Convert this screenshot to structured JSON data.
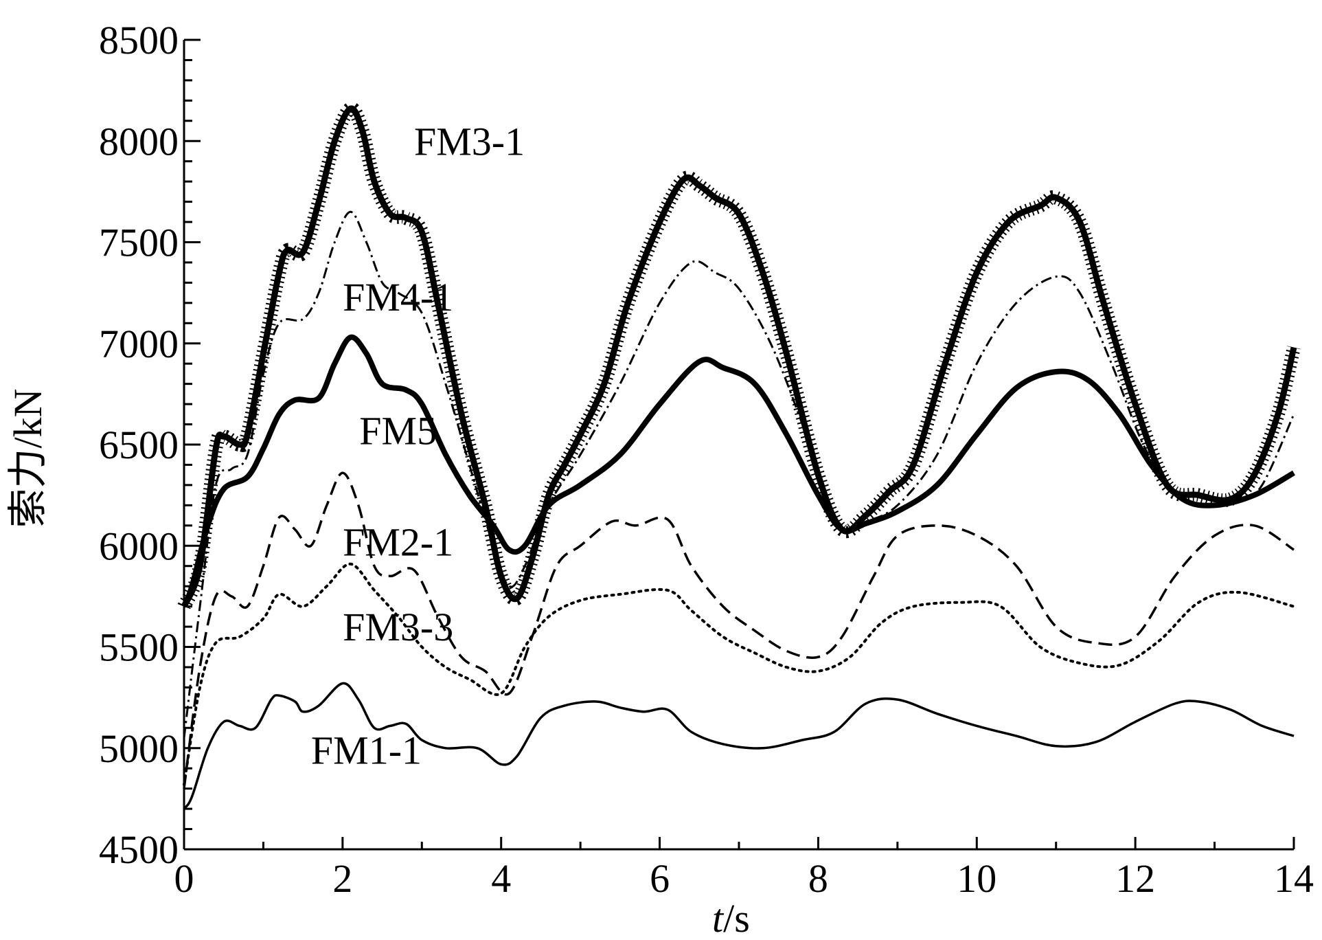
{
  "chart_data": {
    "type": "line",
    "title": "",
    "xlabel_var": "t",
    "xlabel_unit": "/s",
    "ylabel": "索力/kN",
    "xlim": [
      0,
      14
    ],
    "ylim": [
      4500,
      8500
    ],
    "x_ticks": [
      0,
      2,
      4,
      6,
      8,
      10,
      12,
      14
    ],
    "x_tick_labels": [
      "0",
      "2",
      "4",
      "6",
      "8",
      "10",
      "12",
      "14"
    ],
    "y_ticks": [
      4500,
      5000,
      5500,
      6000,
      6500,
      7000,
      7500,
      8000,
      8500
    ],
    "y_tick_labels": [
      "4500",
      "5000",
      "5500",
      "6000",
      "6500",
      "7000",
      "7500",
      "8000",
      "8500"
    ],
    "grid": false,
    "legend": "none",
    "series": [
      {
        "name": "FM3-1",
        "style": "thick-crossed",
        "points": [
          [
            0,
            5700
          ],
          [
            0.2,
            5900
          ],
          [
            0.4,
            6480
          ],
          [
            0.5,
            6540
          ],
          [
            0.7,
            6500
          ],
          [
            0.8,
            6550
          ],
          [
            1.0,
            6950
          ],
          [
            1.2,
            7350
          ],
          [
            1.3,
            7460
          ],
          [
            1.5,
            7450
          ],
          [
            1.7,
            7700
          ],
          [
            1.9,
            8000
          ],
          [
            2.1,
            8160
          ],
          [
            2.25,
            8050
          ],
          [
            2.4,
            7800
          ],
          [
            2.6,
            7640
          ],
          [
            2.8,
            7620
          ],
          [
            3.0,
            7550
          ],
          [
            3.2,
            7200
          ],
          [
            3.5,
            6650
          ],
          [
            3.8,
            6200
          ],
          [
            4.0,
            5850
          ],
          [
            4.2,
            5740
          ],
          [
            4.4,
            5950
          ],
          [
            4.6,
            6250
          ],
          [
            4.8,
            6400
          ],
          [
            5.0,
            6550
          ],
          [
            5.3,
            6800
          ],
          [
            5.6,
            7200
          ],
          [
            6.0,
            7600
          ],
          [
            6.3,
            7810
          ],
          [
            6.5,
            7780
          ],
          [
            6.7,
            7720
          ],
          [
            7.0,
            7640
          ],
          [
            7.3,
            7350
          ],
          [
            7.6,
            6950
          ],
          [
            8.0,
            6350
          ],
          [
            8.3,
            6080
          ],
          [
            8.6,
            6150
          ],
          [
            8.9,
            6270
          ],
          [
            9.2,
            6400
          ],
          [
            9.6,
            6900
          ],
          [
            10.0,
            7350
          ],
          [
            10.4,
            7600
          ],
          [
            10.8,
            7680
          ],
          [
            11.0,
            7720
          ],
          [
            11.3,
            7600
          ],
          [
            11.6,
            7200
          ],
          [
            12.0,
            6700
          ],
          [
            12.4,
            6300
          ],
          [
            12.8,
            6250
          ],
          [
            13.2,
            6230
          ],
          [
            13.5,
            6350
          ],
          [
            13.8,
            6650
          ],
          [
            14.0,
            6980
          ]
        ]
      },
      {
        "name": "FM4-1",
        "style": "dash-dot",
        "points": [
          [
            0,
            5050
          ],
          [
            0.2,
            5700
          ],
          [
            0.4,
            6300
          ],
          [
            0.6,
            6380
          ],
          [
            0.8,
            6450
          ],
          [
            1.0,
            6850
          ],
          [
            1.2,
            7100
          ],
          [
            1.5,
            7120
          ],
          [
            1.7,
            7250
          ],
          [
            1.9,
            7500
          ],
          [
            2.1,
            7650
          ],
          [
            2.3,
            7500
          ],
          [
            2.5,
            7300
          ],
          [
            2.7,
            7250
          ],
          [
            3.0,
            7150
          ],
          [
            3.3,
            6800
          ],
          [
            3.6,
            6400
          ],
          [
            3.9,
            6000
          ],
          [
            4.1,
            5800
          ],
          [
            4.3,
            5900
          ],
          [
            4.6,
            6200
          ],
          [
            5.0,
            6450
          ],
          [
            5.5,
            6800
          ],
          [
            6.0,
            7200
          ],
          [
            6.4,
            7400
          ],
          [
            6.7,
            7350
          ],
          [
            7.0,
            7270
          ],
          [
            7.4,
            7000
          ],
          [
            7.8,
            6600
          ],
          [
            8.1,
            6250
          ],
          [
            8.3,
            6100
          ],
          [
            8.6,
            6120
          ],
          [
            9.0,
            6200
          ],
          [
            9.5,
            6450
          ],
          [
            10.0,
            6900
          ],
          [
            10.5,
            7200
          ],
          [
            11.0,
            7330
          ],
          [
            11.3,
            7250
          ],
          [
            11.7,
            6900
          ],
          [
            12.1,
            6500
          ],
          [
            12.5,
            6250
          ],
          [
            12.9,
            6200
          ],
          [
            13.3,
            6220
          ],
          [
            13.6,
            6300
          ],
          [
            14.0,
            6650
          ]
        ]
      },
      {
        "name": "FM5",
        "style": "thick-solid",
        "points": [
          [
            0,
            5700
          ],
          [
            0.1,
            5800
          ],
          [
            0.3,
            6100
          ],
          [
            0.5,
            6280
          ],
          [
            0.8,
            6340
          ],
          [
            1.0,
            6480
          ],
          [
            1.2,
            6650
          ],
          [
            1.4,
            6720
          ],
          [
            1.7,
            6730
          ],
          [
            1.9,
            6900
          ],
          [
            2.1,
            7030
          ],
          [
            2.3,
            6950
          ],
          [
            2.5,
            6800
          ],
          [
            2.8,
            6770
          ],
          [
            3.0,
            6700
          ],
          [
            3.3,
            6450
          ],
          [
            3.6,
            6250
          ],
          [
            3.9,
            6100
          ],
          [
            4.1,
            5980
          ],
          [
            4.3,
            6000
          ],
          [
            4.6,
            6200
          ],
          [
            5.0,
            6300
          ],
          [
            5.5,
            6450
          ],
          [
            6.0,
            6700
          ],
          [
            6.5,
            6910
          ],
          [
            6.8,
            6880
          ],
          [
            7.2,
            6800
          ],
          [
            7.6,
            6550
          ],
          [
            8.0,
            6250
          ],
          [
            8.3,
            6080
          ],
          [
            8.6,
            6110
          ],
          [
            9.0,
            6170
          ],
          [
            9.5,
            6300
          ],
          [
            10.0,
            6550
          ],
          [
            10.5,
            6780
          ],
          [
            11.0,
            6860
          ],
          [
            11.4,
            6820
          ],
          [
            11.8,
            6650
          ],
          [
            12.2,
            6400
          ],
          [
            12.6,
            6230
          ],
          [
            13.0,
            6200
          ],
          [
            13.5,
            6250
          ],
          [
            14.0,
            6360
          ]
        ]
      },
      {
        "name": "FM2-1",
        "style": "dashed",
        "points": [
          [
            0,
            4800
          ],
          [
            0.2,
            5400
          ],
          [
            0.4,
            5750
          ],
          [
            0.6,
            5750
          ],
          [
            0.8,
            5700
          ],
          [
            1.0,
            5900
          ],
          [
            1.2,
            6140
          ],
          [
            1.4,
            6080
          ],
          [
            1.6,
            6000
          ],
          [
            1.8,
            6200
          ],
          [
            2.0,
            6360
          ],
          [
            2.2,
            6200
          ],
          [
            2.4,
            5900
          ],
          [
            2.6,
            5850
          ],
          [
            2.9,
            5880
          ],
          [
            3.2,
            5650
          ],
          [
            3.5,
            5450
          ],
          [
            3.8,
            5380
          ],
          [
            4.1,
            5270
          ],
          [
            4.4,
            5560
          ],
          [
            4.7,
            5900
          ],
          [
            5.0,
            6000
          ],
          [
            5.4,
            6120
          ],
          [
            5.7,
            6100
          ],
          [
            6.1,
            6130
          ],
          [
            6.4,
            5900
          ],
          [
            6.8,
            5700
          ],
          [
            7.2,
            5580
          ],
          [
            7.6,
            5480
          ],
          [
            8.0,
            5450
          ],
          [
            8.3,
            5550
          ],
          [
            8.7,
            5850
          ],
          [
            9.0,
            6050
          ],
          [
            9.5,
            6100
          ],
          [
            10.0,
            6050
          ],
          [
            10.5,
            5900
          ],
          [
            11.0,
            5600
          ],
          [
            11.5,
            5520
          ],
          [
            12.0,
            5550
          ],
          [
            12.5,
            5850
          ],
          [
            13.0,
            6050
          ],
          [
            13.5,
            6100
          ],
          [
            14.0,
            5980
          ]
        ]
      },
      {
        "name": "FM3-3",
        "style": "dotted",
        "points": [
          [
            0,
            4820
          ],
          [
            0.2,
            5300
          ],
          [
            0.4,
            5520
          ],
          [
            0.7,
            5550
          ],
          [
            1.0,
            5640
          ],
          [
            1.2,
            5760
          ],
          [
            1.5,
            5700
          ],
          [
            1.8,
            5800
          ],
          [
            2.1,
            5910
          ],
          [
            2.4,
            5780
          ],
          [
            2.7,
            5650
          ],
          [
            3.0,
            5500
          ],
          [
            3.3,
            5400
          ],
          [
            3.6,
            5340
          ],
          [
            4.0,
            5270
          ],
          [
            4.3,
            5500
          ],
          [
            4.6,
            5650
          ],
          [
            5.0,
            5730
          ],
          [
            5.5,
            5760
          ],
          [
            6.1,
            5780
          ],
          [
            6.4,
            5680
          ],
          [
            6.8,
            5550
          ],
          [
            7.2,
            5470
          ],
          [
            7.6,
            5400
          ],
          [
            8.0,
            5380
          ],
          [
            8.4,
            5450
          ],
          [
            8.8,
            5620
          ],
          [
            9.2,
            5700
          ],
          [
            9.8,
            5720
          ],
          [
            10.3,
            5700
          ],
          [
            10.8,
            5500
          ],
          [
            11.3,
            5420
          ],
          [
            11.8,
            5410
          ],
          [
            12.3,
            5530
          ],
          [
            12.8,
            5720
          ],
          [
            13.3,
            5770
          ],
          [
            14.0,
            5700
          ]
        ]
      },
      {
        "name": "FM1-1",
        "style": "solid",
        "points": [
          [
            0,
            4700
          ],
          [
            0.1,
            4760
          ],
          [
            0.3,
            5000
          ],
          [
            0.5,
            5130
          ],
          [
            0.7,
            5110
          ],
          [
            0.9,
            5100
          ],
          [
            1.1,
            5240
          ],
          [
            1.2,
            5260
          ],
          [
            1.4,
            5230
          ],
          [
            1.5,
            5180
          ],
          [
            1.7,
            5210
          ],
          [
            2.0,
            5320
          ],
          [
            2.2,
            5240
          ],
          [
            2.4,
            5100
          ],
          [
            2.6,
            5110
          ],
          [
            2.8,
            5120
          ],
          [
            3.0,
            5040
          ],
          [
            3.3,
            5000
          ],
          [
            3.7,
            5000
          ],
          [
            4.0,
            4920
          ],
          [
            4.2,
            4960
          ],
          [
            4.5,
            5150
          ],
          [
            4.8,
            5210
          ],
          [
            5.2,
            5230
          ],
          [
            5.5,
            5200
          ],
          [
            5.8,
            5180
          ],
          [
            6.1,
            5190
          ],
          [
            6.4,
            5080
          ],
          [
            6.8,
            5020
          ],
          [
            7.3,
            5000
          ],
          [
            7.8,
            5040
          ],
          [
            8.2,
            5080
          ],
          [
            8.6,
            5220
          ],
          [
            9.0,
            5240
          ],
          [
            9.5,
            5170
          ],
          [
            10.0,
            5110
          ],
          [
            10.5,
            5060
          ],
          [
            11.0,
            5010
          ],
          [
            11.5,
            5030
          ],
          [
            12.0,
            5130
          ],
          [
            12.5,
            5220
          ],
          [
            12.8,
            5230
          ],
          [
            13.2,
            5190
          ],
          [
            13.6,
            5110
          ],
          [
            14.0,
            5060
          ]
        ]
      }
    ],
    "annotations": [
      {
        "text": "FM3-1",
        "x": 3.6,
        "y": 8000
      },
      {
        "text": "FM4-1",
        "x": 2.7,
        "y": 7230
      },
      {
        "text": "FM5",
        "x": 2.7,
        "y": 6570
      },
      {
        "text": "FM2-1",
        "x": 2.7,
        "y": 6020
      },
      {
        "text": "FM3-3",
        "x": 2.7,
        "y": 5600
      },
      {
        "text": "FM1-1",
        "x": 2.3,
        "y": 4990
      }
    ]
  }
}
